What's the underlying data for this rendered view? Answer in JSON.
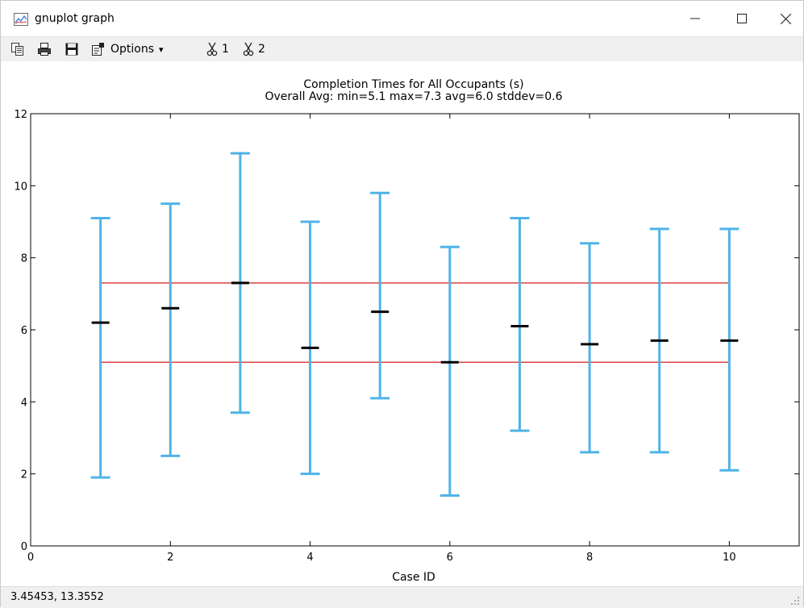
{
  "window": {
    "title": "gnuplot graph"
  },
  "toolbar": {
    "options_label": "Options",
    "options_caret": "▾",
    "ruler1_label": "1",
    "ruler2_label": "2"
  },
  "status": {
    "coords": "3.45453,  13.3552"
  },
  "colors": {
    "errorbar": "#4fb3e8",
    "mean": "#000000",
    "reference_line": "#d00000",
    "axis": "#000000"
  },
  "chart_data": {
    "type": "errorbar",
    "title": "Completion Times for All Occupants (s)",
    "subtitle": "Overall Avg: min=5.1 max=7.3 avg=6.0 stddev=0.6",
    "xlabel": "Case ID",
    "ylabel": "",
    "xlim": [
      0,
      11
    ],
    "ylim": [
      0,
      12
    ],
    "xticks": [
      0,
      2,
      4,
      6,
      8,
      10
    ],
    "yticks": [
      0,
      2,
      4,
      6,
      8,
      10,
      12
    ],
    "grid": false,
    "series": [
      {
        "x": [
          1,
          2,
          3,
          4,
          5,
          6,
          7,
          8,
          9,
          10
        ],
        "mean": [
          6.2,
          6.6,
          7.3,
          5.5,
          6.5,
          5.1,
          6.1,
          5.6,
          5.7,
          5.7
        ],
        "low": [
          1.9,
          2.5,
          3.7,
          2.0,
          4.1,
          1.4,
          3.2,
          2.6,
          2.6,
          2.1
        ],
        "high": [
          9.1,
          9.5,
          10.9,
          9.0,
          9.8,
          8.3,
          9.1,
          8.4,
          8.8,
          8.8
        ]
      }
    ],
    "reference_lines": [
      {
        "y": 7.3,
        "x_from": 1,
        "x_to": 10
      },
      {
        "y": 5.1,
        "x_from": 1,
        "x_to": 10
      }
    ]
  }
}
